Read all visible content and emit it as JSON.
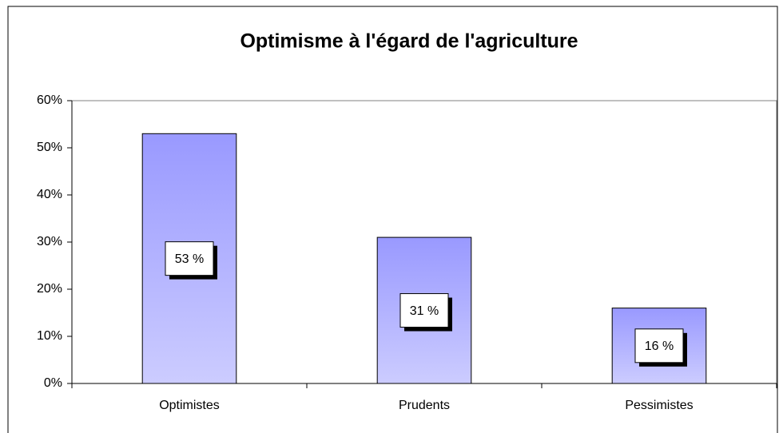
{
  "chart_data": {
    "type": "bar",
    "title": "Optimisme à l'égard de l'agriculture",
    "categories": [
      "Optimistes",
      "Prudents",
      "Pessimistes"
    ],
    "values": [
      53,
      31,
      16
    ],
    "value_labels": [
      "53 %",
      "31 %",
      "16 %"
    ],
    "color": "#9999ff",
    "ylim": [
      0,
      60
    ],
    "yticks": [
      {
        "value": 0,
        "label": "0%"
      },
      {
        "value": 10,
        "label": "10%"
      },
      {
        "value": 20,
        "label": "20%"
      },
      {
        "value": 30,
        "label": "30%"
      },
      {
        "value": 40,
        "label": "40%"
      },
      {
        "value": 50,
        "label": "50%"
      },
      {
        "value": 60,
        "label": "60%"
      }
    ],
    "grid": false
  }
}
